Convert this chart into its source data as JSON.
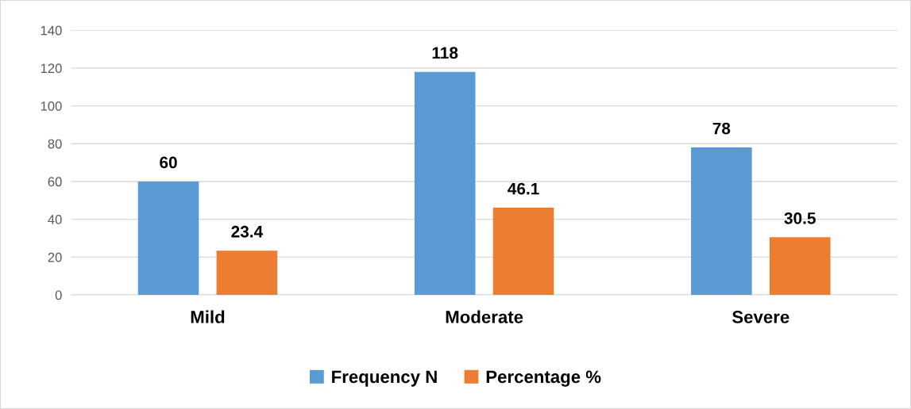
{
  "chart_data": {
    "type": "bar",
    "categories": [
      "Mild",
      "Moderate",
      "Severe"
    ],
    "series": [
      {
        "name": "Frequency N",
        "color": "#5b9bd5",
        "values": [
          60,
          118,
          78
        ]
      },
      {
        "name": "Percentage %",
        "color": "#ed7d31",
        "values": [
          23.4,
          46.1,
          30.5
        ]
      }
    ],
    "ylim": [
      0,
      140
    ],
    "yticks": [
      0,
      20,
      40,
      60,
      80,
      100,
      120,
      140
    ],
    "grid": "y",
    "legend": "bottom",
    "data_labels": true
  }
}
